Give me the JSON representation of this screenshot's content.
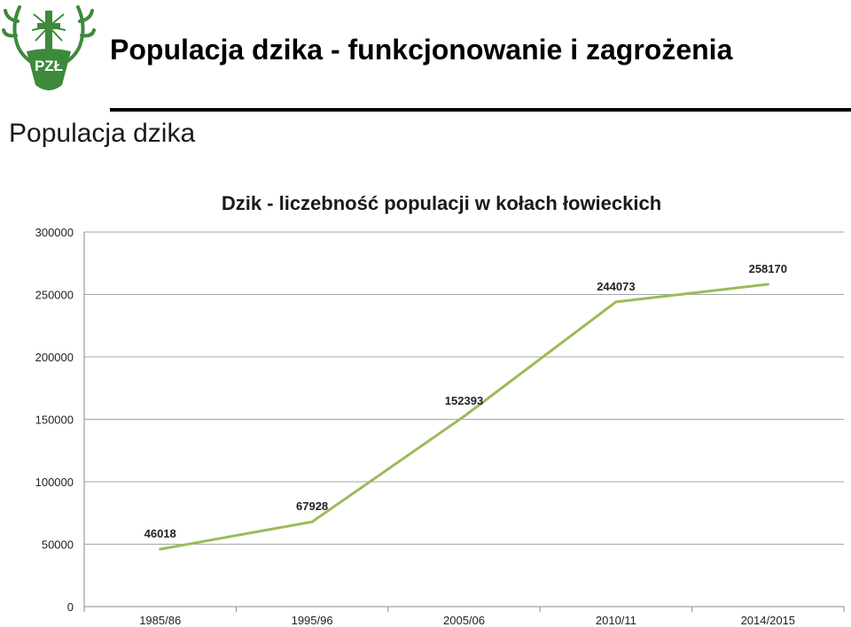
{
  "slide": {
    "title": "Populacja dzika - funkcjonowanie i zagrożenia",
    "subtitle": "Populacja dzika",
    "logo": {
      "icon": "pzl-hunting-association-logo",
      "text": "PZŁ",
      "color": "#3c8a3a"
    }
  },
  "chart_data": {
    "type": "line",
    "title": "Dzik - liczebność populacji w kołach łowieckich",
    "xlabel": "",
    "ylabel": "",
    "categories": [
      "1985/86",
      "1995/96",
      "2005/06",
      "2010/11",
      "2014/2015"
    ],
    "series": [
      {
        "values": [
          46018,
          67928,
          152393,
          244073,
          258170
        ],
        "color": "#9bbb59"
      }
    ],
    "ylim": [
      0,
      300000
    ],
    "yticks": [
      0,
      50000,
      100000,
      150000,
      200000,
      250000,
      300000
    ],
    "grid": true,
    "data_labels": true,
    "legend": "none"
  }
}
